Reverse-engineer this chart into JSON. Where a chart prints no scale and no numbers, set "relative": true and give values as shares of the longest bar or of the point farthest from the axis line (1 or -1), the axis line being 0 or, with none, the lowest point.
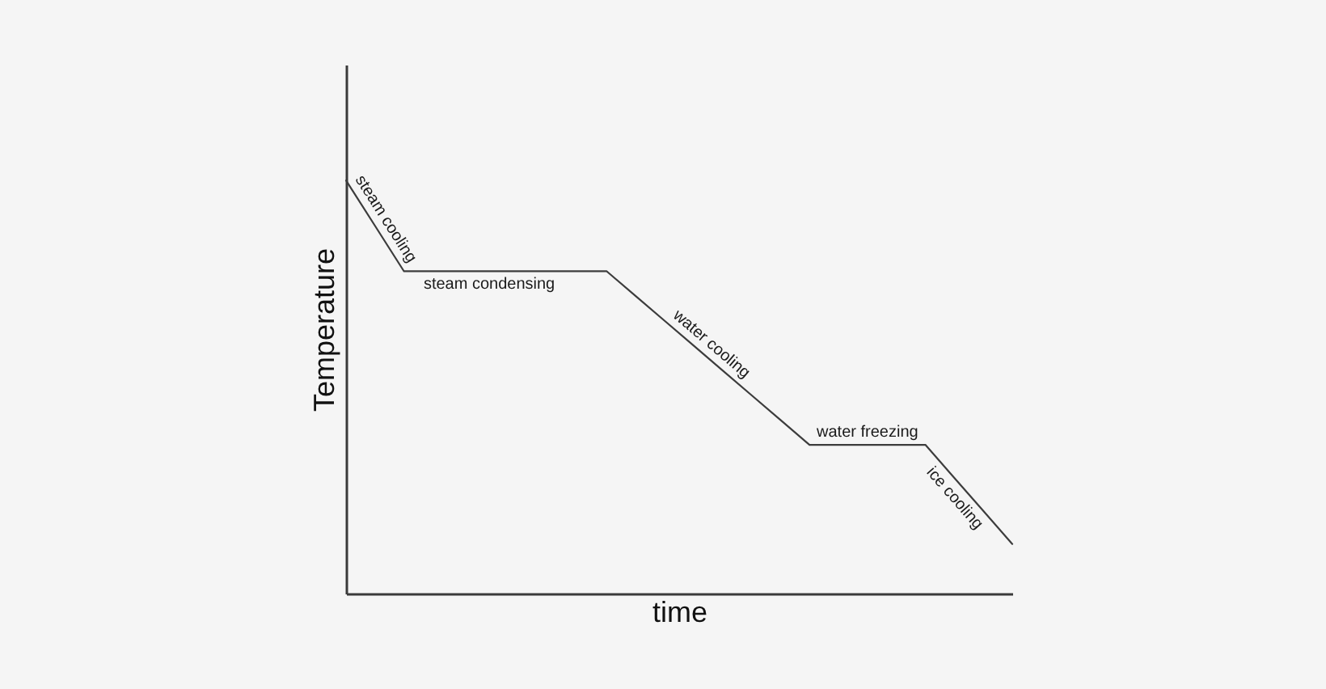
{
  "chart_data": {
    "type": "line",
    "xlabel": "time",
    "ylabel": "Temperature",
    "relative": true,
    "categories": [
      null,
      null,
      null,
      null,
      null,
      null,
      null,
      null,
      null,
      null,
      null,
      null,
      null,
      null,
      null,
      null,
      null,
      null,
      null,
      null,
      null,
      null,
      null,
      null
    ],
    "series": [
      {
        "color": "#3c3c3c",
        "values": [
          1,
          0.89,
          0.78,
          0.78,
          0.78,
          0.78,
          0.78,
          0.78,
          0.78,
          0.78,
          0.72,
          0.66,
          0.6,
          0.54,
          0.48,
          0.42,
          0.36,
          0.36,
          0.36,
          0.36,
          0.36,
          0.28,
          0.2,
          0.12
        ]
      }
    ],
    "annotations": [
      "steam cooling",
      "steam condensing",
      "water cooling",
      "water freezing",
      "ice cooling"
    ],
    "grid": false,
    "marker": "none",
    "line_style": "solid"
  }
}
